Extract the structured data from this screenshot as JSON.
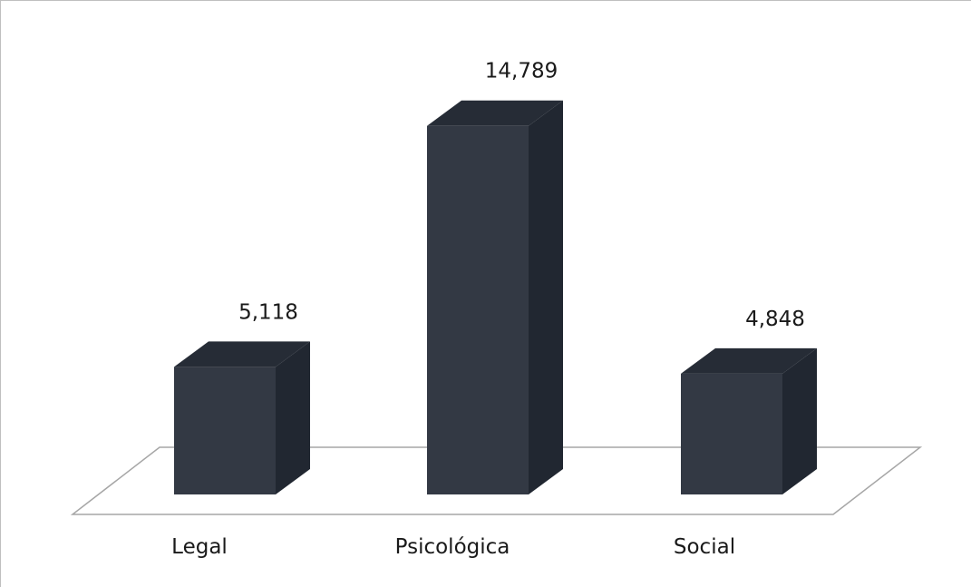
{
  "chart_data": {
    "type": "bar",
    "style": "3d-column",
    "categories": [
      "Legal",
      "Psicológica",
      "Social"
    ],
    "values": [
      5.118,
      14.789,
      4.848
    ],
    "value_labels": [
      "5,118",
      "14,789",
      "4,848"
    ],
    "title": "",
    "xlabel": "",
    "ylabel": "",
    "ylim": [
      0,
      16
    ],
    "grid": false,
    "legend": "none",
    "colors": {
      "bar_front": "#333944",
      "bar_side": "#212731",
      "bar_top": "#262c36",
      "floor_stroke": "#a6a6a6",
      "text": "#1a1a1a"
    }
  }
}
